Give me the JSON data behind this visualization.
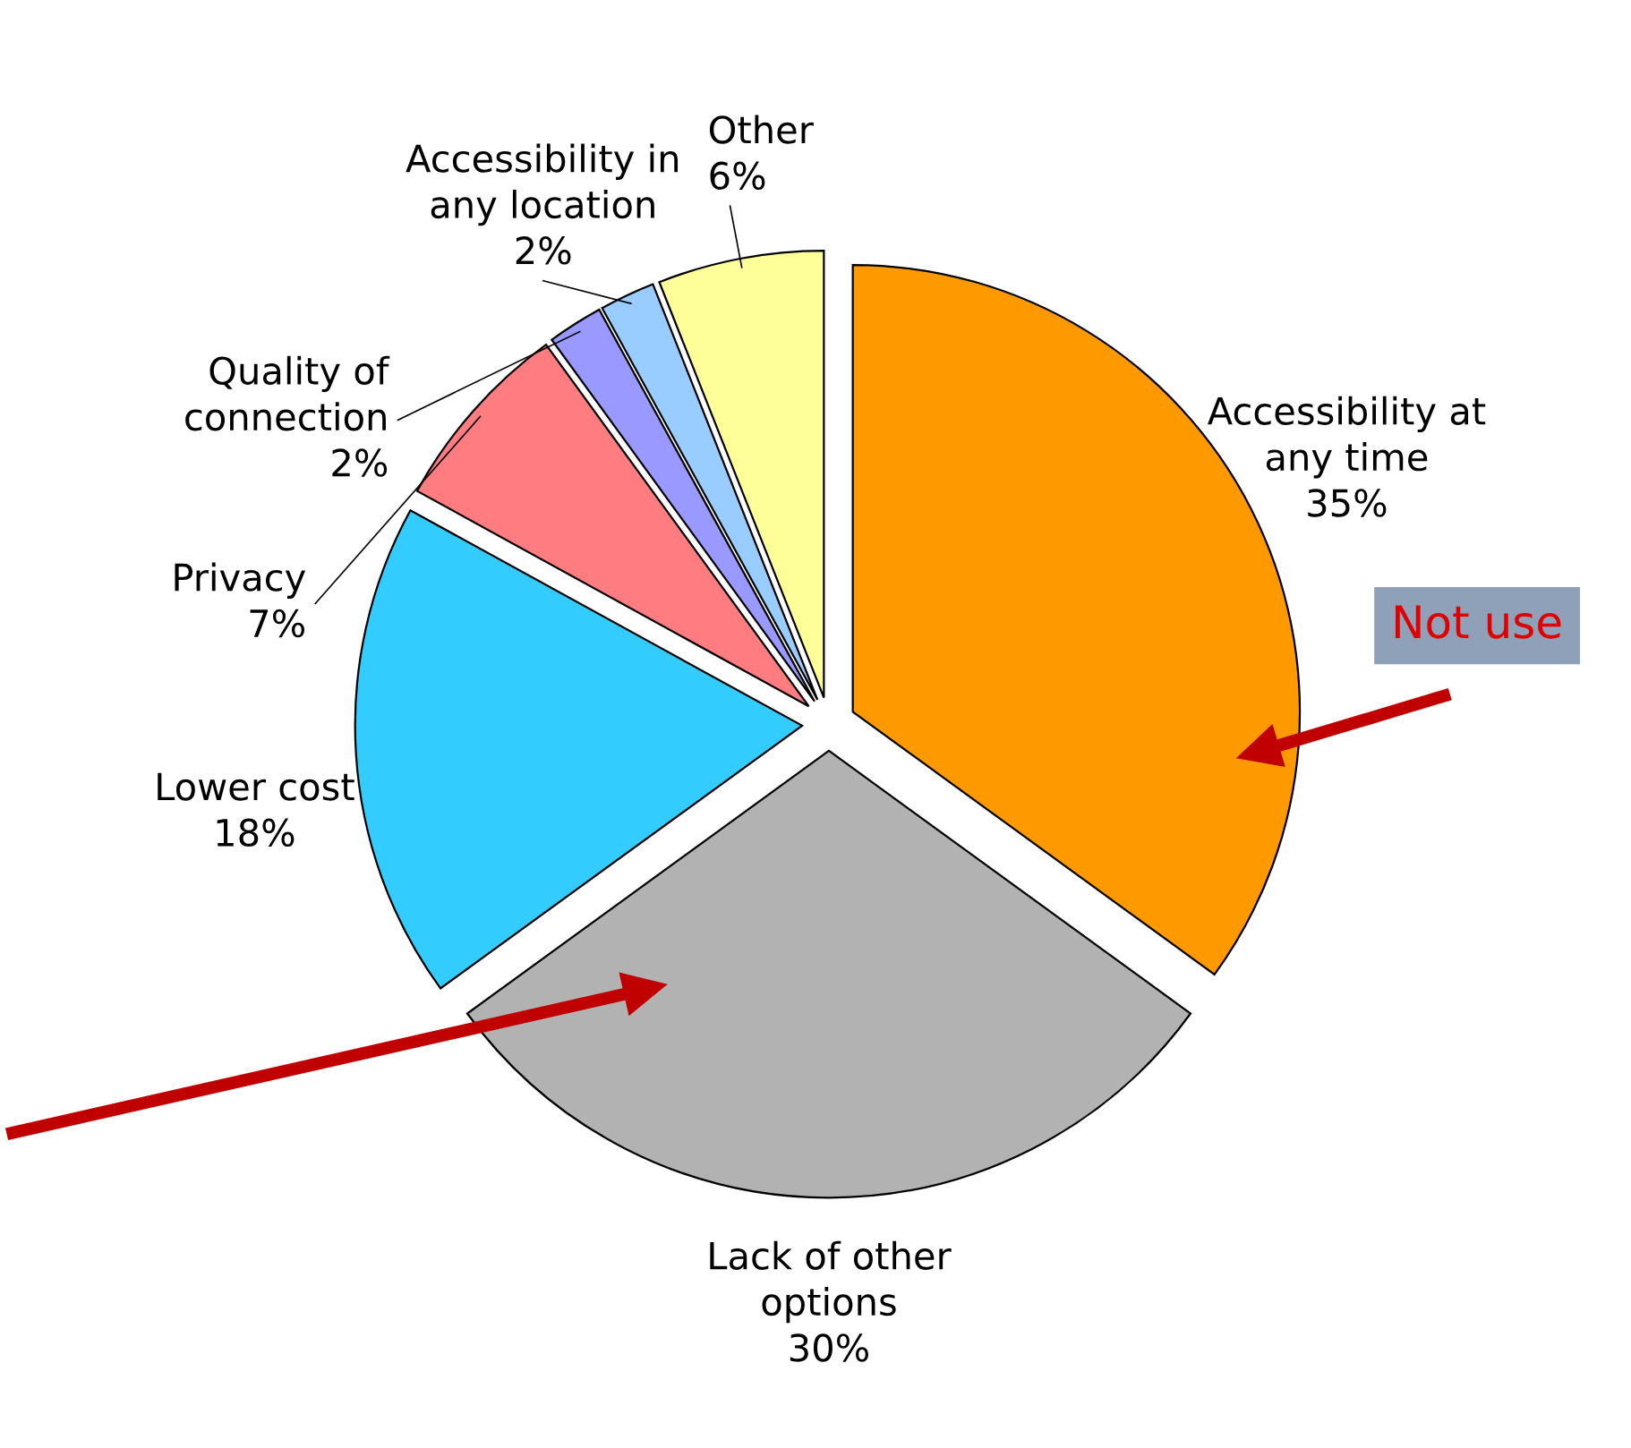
{
  "chart_data": {
    "type": "pie",
    "categories": [
      "Accessibility at\nany time",
      "Lack of other\noptions",
      "Lower cost",
      "Privacy",
      "Quality of\nconnection",
      "Accessibility in\nany location",
      "Other"
    ],
    "values": [
      35,
      30,
      18,
      7,
      2,
      2,
      6
    ],
    "colors": [
      "#ff9900",
      "#b2b2b2",
      "#33ccff",
      "#ff7c80",
      "#9999ff",
      "#99ccff",
      "#ffff99"
    ],
    "value_labels": [
      "35%",
      "30%",
      "18%",
      "7%",
      "2%",
      "2%",
      "6%"
    ],
    "legend": false,
    "annotations": [
      "Not use"
    ]
  }
}
